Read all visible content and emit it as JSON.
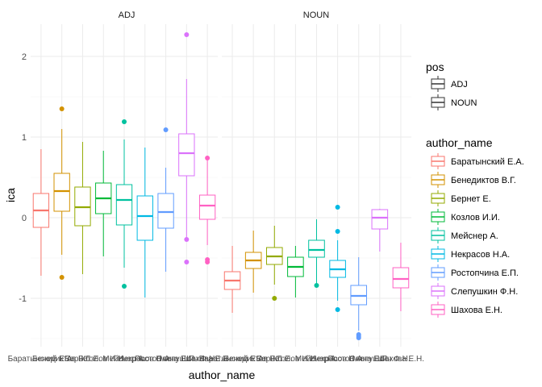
{
  "chart_data": {
    "type": "boxplot",
    "xlabel": "author_name",
    "ylabel": "ica",
    "ylim": [
      -1.6,
      2.4
    ],
    "yticks": [
      -1,
      0,
      1,
      2
    ],
    "grid": true,
    "facets": [
      "ADJ",
      "NOUN"
    ],
    "categories": [
      "Баратынский Е.А.",
      "Бенедиктов В.Г.",
      "Бернет Е.",
      "Козлов И.И.",
      "Мейснер А.",
      "Некрасов Н.А.",
      "Ростопчина Е.П.",
      "Слепушкин Ф.Н.",
      "Шахова Е.Н."
    ],
    "colors": [
      "#F8766D",
      "#D39200",
      "#93AA00",
      "#00BA38",
      "#00C19F",
      "#00B9E3",
      "#619CFF",
      "#DB72FB",
      "#FF61C3"
    ],
    "legend_pos": {
      "title": "pos",
      "entries": [
        "ADJ",
        "NOUN"
      ]
    },
    "legend_author": {
      "title": "author_name",
      "placement": "right"
    },
    "boxes": {
      "ADJ": [
        {
          "whisker_low": -0.72,
          "q1": -0.12,
          "median": 0.09,
          "q3": 0.3,
          "whisker_high": 0.85,
          "outliers": []
        },
        {
          "whisker_low": -0.46,
          "q1": 0.08,
          "median": 0.33,
          "q3": 0.55,
          "whisker_high": 1.1,
          "outliers": [
            1.35,
            -0.74
          ]
        },
        {
          "whisker_low": -0.7,
          "q1": -0.1,
          "median": 0.13,
          "q3": 0.38,
          "whisker_high": 0.94,
          "outliers": []
        },
        {
          "whisker_low": -0.48,
          "q1": 0.05,
          "median": 0.24,
          "q3": 0.43,
          "whisker_high": 0.83,
          "outliers": []
        },
        {
          "whisker_low": -0.62,
          "q1": -0.09,
          "median": 0.22,
          "q3": 0.41,
          "whisker_high": 0.97,
          "outliers": [
            1.19,
            -0.85
          ]
        },
        {
          "whisker_low": -0.99,
          "q1": -0.28,
          "median": 0.02,
          "q3": 0.27,
          "whisker_high": 0.87,
          "outliers": []
        },
        {
          "whisker_low": -0.67,
          "q1": -0.13,
          "median": 0.07,
          "q3": 0.3,
          "whisker_high": 0.62,
          "outliers": [
            1.09
          ]
        },
        {
          "whisker_low": -0.26,
          "q1": 0.52,
          "median": 0.8,
          "q3": 1.04,
          "whisker_high": 1.72,
          "outliers": [
            2.27,
            -0.27,
            -0.55
          ]
        },
        {
          "whisker_low": -0.34,
          "q1": -0.02,
          "median": 0.15,
          "q3": 0.28,
          "whisker_high": 0.75,
          "outliers": [
            0.74,
            -0.52,
            -0.55
          ]
        }
      ],
      "NOUN": [
        {
          "whisker_low": -1.18,
          "q1": -0.89,
          "median": -0.78,
          "q3": -0.67,
          "whisker_high": -0.35,
          "outliers": []
        },
        {
          "whisker_low": -0.93,
          "q1": -0.63,
          "median": -0.53,
          "q3": -0.43,
          "whisker_high": -0.16,
          "outliers": []
        },
        {
          "whisker_low": -0.83,
          "q1": -0.58,
          "median": -0.48,
          "q3": -0.37,
          "whisker_high": -0.1,
          "outliers": [
            -1.0
          ]
        },
        {
          "whisker_low": -0.99,
          "q1": -0.73,
          "median": -0.61,
          "q3": -0.49,
          "whisker_high": -0.35,
          "outliers": []
        },
        {
          "whisker_low": -0.84,
          "q1": -0.49,
          "median": -0.4,
          "q3": -0.28,
          "whisker_high": -0.02,
          "outliers": [
            -0.84
          ]
        },
        {
          "whisker_low": -1.03,
          "q1": -0.74,
          "median": -0.64,
          "q3": -0.53,
          "whisker_high": -0.28,
          "outliers": [
            0.13,
            -0.17,
            -1.14
          ]
        },
        {
          "whisker_low": -1.4,
          "q1": -1.08,
          "median": -0.97,
          "q3": -0.84,
          "whisker_high": -0.49,
          "outliers": [
            -1.45,
            -1.47,
            -1.49
          ]
        },
        {
          "whisker_low": -0.42,
          "q1": -0.14,
          "median": 0.0,
          "q3": 0.1,
          "whisker_high": 0.11,
          "outliers": []
        },
        {
          "whisker_low": -1.16,
          "q1": -0.87,
          "median": -0.76,
          "q3": -0.62,
          "whisker_high": -0.31,
          "outliers": []
        }
      ]
    }
  }
}
